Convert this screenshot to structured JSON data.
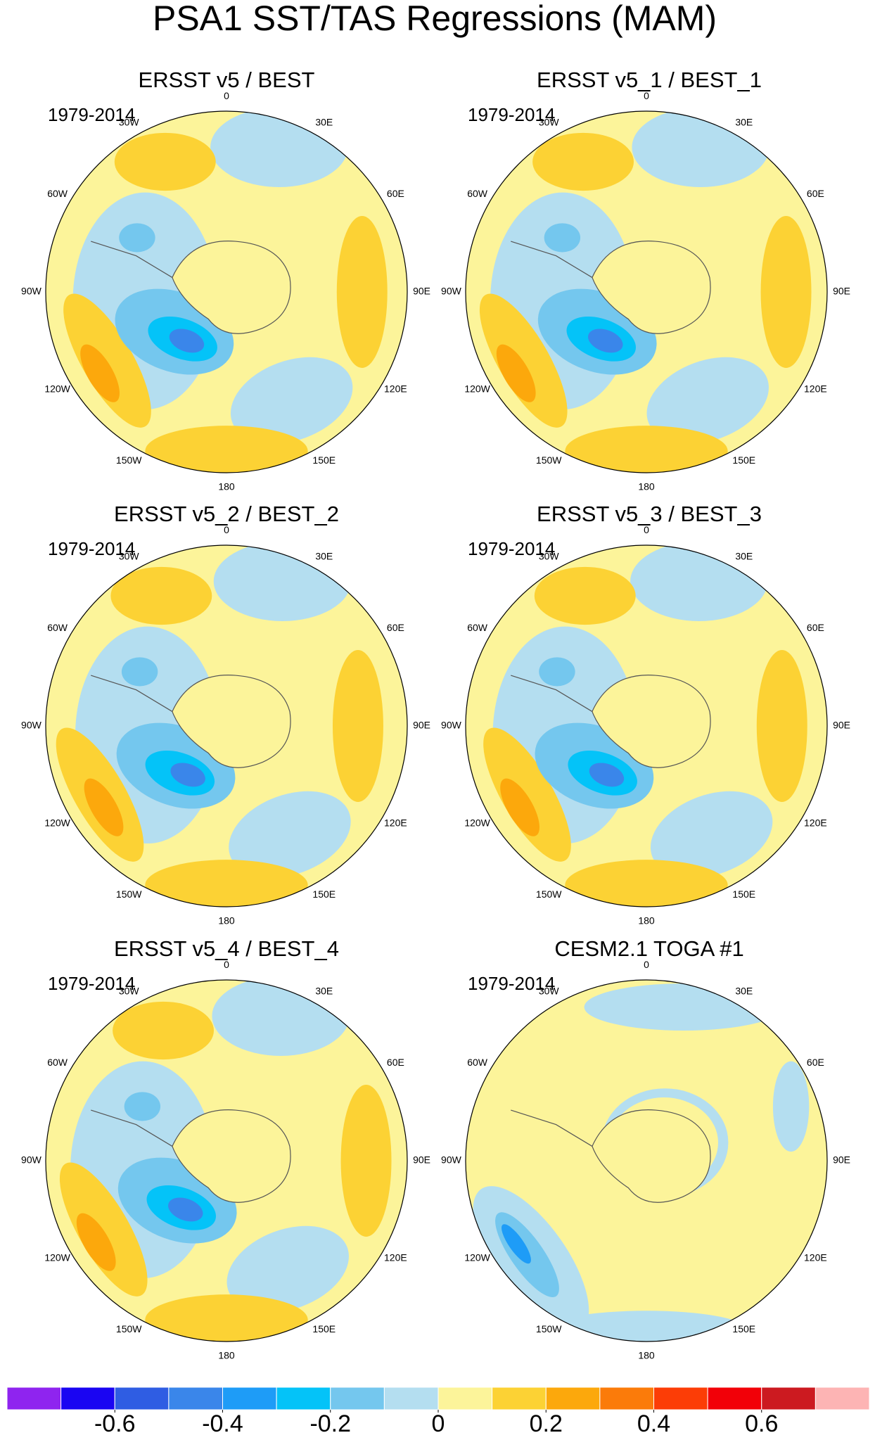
{
  "title": "PSA1 SST/TAS Regressions (MAM)",
  "panels": [
    {
      "title": "ERSST v5 / BEST",
      "period": "1979-2014"
    },
    {
      "title": "ERSST v5_1 / BEST_1",
      "period": "1979-2014"
    },
    {
      "title": "ERSST v5_2 / BEST_2",
      "period": "1979-2014"
    },
    {
      "title": "ERSST v5_3 / BEST_3",
      "period": "1979-2014"
    },
    {
      "title": "ERSST v5_4 / BEST_4",
      "period": "1979-2014"
    },
    {
      "title": "CESM2.1 TOGA #1",
      "period": "1979-2014"
    }
  ],
  "longitude_labels": [
    "0",
    "30E",
    "60E",
    "90E",
    "120E",
    "150E",
    "180",
    "150W",
    "120W",
    "90W",
    "60W",
    "30W"
  ],
  "colorbar": {
    "colors": [
      "#8f24ef",
      "#1a05f2",
      "#2f5de3",
      "#3a86ea",
      "#1e9cf7",
      "#04c3f8",
      "#74c7ee",
      "#b4def0",
      "#fcf49a",
      "#fcd234",
      "#fca80c",
      "#fb7b0a",
      "#fc3d06",
      "#f20008",
      "#cc1a20",
      "#fdb4b4"
    ],
    "levels": [
      -0.7,
      -0.6,
      -0.5,
      -0.4,
      -0.3,
      -0.2,
      -0.1,
      0,
      0.1,
      0.2,
      0.3,
      0.4,
      0.5,
      0.6,
      0.7
    ],
    "ticks": [
      -0.6,
      -0.4,
      -0.2,
      0,
      0.2,
      0.4,
      0.6
    ]
  }
}
